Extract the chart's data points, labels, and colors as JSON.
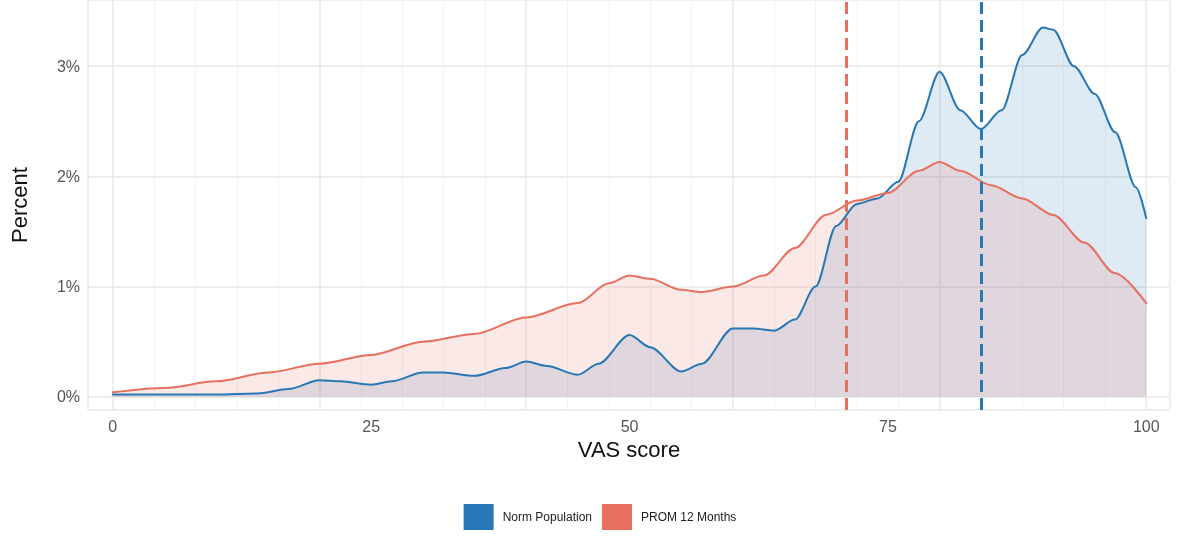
{
  "chart_data": {
    "type": "area",
    "xlabel": "VAS score",
    "ylabel": "Percent",
    "xlim": [
      -2.4,
      102.3
    ],
    "xticks": [
      0,
      25,
      50,
      75,
      100
    ],
    "ylim": [
      -0.12,
      3.6
    ],
    "yticks": [
      {
        "value": 0,
        "label": "0%"
      },
      {
        "value": 1,
        "label": "1%"
      },
      {
        "value": 2,
        "label": "2%"
      },
      {
        "value": 3,
        "label": "3%"
      }
    ],
    "grid": true,
    "legend": "bottom",
    "line_style": "solid",
    "marker": "none",
    "ref_lines": [
      {
        "axis": "x",
        "value": 71,
        "color": "#e8705f",
        "line_style": "dashed"
      },
      {
        "axis": "x",
        "value": 84,
        "color": "#2878b5",
        "line_style": "dashed"
      }
    ],
    "series": [
      {
        "name": "Norm Population",
        "color": "#2878b5",
        "x": [
          0,
          5,
          10,
          14,
          17,
          20,
          22,
          25,
          27,
          30,
          32,
          35,
          38,
          40,
          42,
          45,
          47,
          50,
          52,
          55,
          57,
          60,
          62,
          64,
          66,
          68,
          70,
          72,
          74,
          76,
          78,
          80,
          82,
          84,
          86,
          88,
          90,
          91,
          93,
          95,
          97,
          99,
          100
        ],
        "values": [
          0.02,
          0.02,
          0.02,
          0.03,
          0.07,
          0.15,
          0.14,
          0.11,
          0.14,
          0.22,
          0.22,
          0.19,
          0.26,
          0.32,
          0.28,
          0.2,
          0.3,
          0.56,
          0.45,
          0.23,
          0.3,
          0.62,
          0.62,
          0.6,
          0.7,
          1.0,
          1.55,
          1.75,
          1.8,
          1.95,
          2.5,
          2.95,
          2.6,
          2.43,
          2.6,
          3.1,
          3.35,
          3.33,
          3.0,
          2.75,
          2.4,
          1.9,
          1.62
        ]
      },
      {
        "name": "PROM 12 Months",
        "color": "#e8705f",
        "x": [
          0,
          5,
          10,
          15,
          20,
          25,
          30,
          35,
          40,
          45,
          48,
          50,
          52,
          55,
          57,
          60,
          63,
          66,
          69,
          72,
          75,
          78,
          80,
          82,
          85,
          88,
          91,
          94,
          97,
          100
        ],
        "values": [
          0.04,
          0.08,
          0.14,
          0.22,
          0.3,
          0.38,
          0.5,
          0.57,
          0.72,
          0.85,
          1.03,
          1.1,
          1.07,
          0.97,
          0.95,
          1.0,
          1.1,
          1.35,
          1.65,
          1.78,
          1.85,
          2.05,
          2.13,
          2.05,
          1.92,
          1.8,
          1.65,
          1.4,
          1.12,
          0.85
        ]
      }
    ]
  }
}
